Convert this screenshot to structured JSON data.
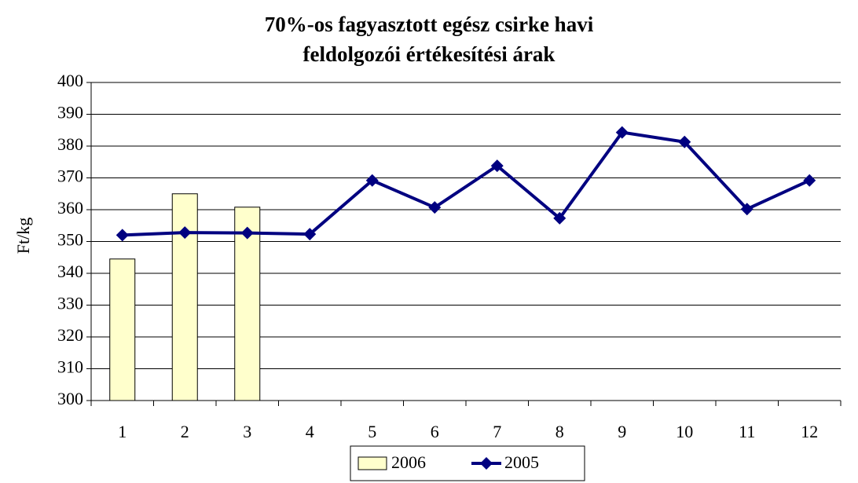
{
  "chart_data": {
    "type": "bar",
    "title": "70%-os fagyasztott egész csirke havi feldolgozói értékesítési árak",
    "y_label": "Ft/kg",
    "categories": [
      "1",
      "2",
      "3",
      "4",
      "5",
      "6",
      "7",
      "8",
      "9",
      "10",
      "11",
      "12"
    ],
    "series": [
      {
        "name": "2006",
        "type": "bar",
        "color": "#ffffcc",
        "values": [
          344.5,
          365,
          360.8,
          null,
          null,
          null,
          null,
          null,
          null,
          null,
          null,
          null
        ]
      },
      {
        "name": "2005",
        "type": "line",
        "color": "#000080",
        "values": [
          352,
          352.8,
          352.7,
          352.3,
          369.2,
          360.7,
          373.8,
          357.3,
          384.3,
          381.3,
          360.2,
          369.2
        ]
      }
    ],
    "ylim": [
      300,
      400
    ],
    "yticks": [
      300,
      310,
      320,
      330,
      340,
      350,
      360,
      370,
      380,
      390,
      400
    ],
    "grid": true,
    "legend": "bottom"
  }
}
